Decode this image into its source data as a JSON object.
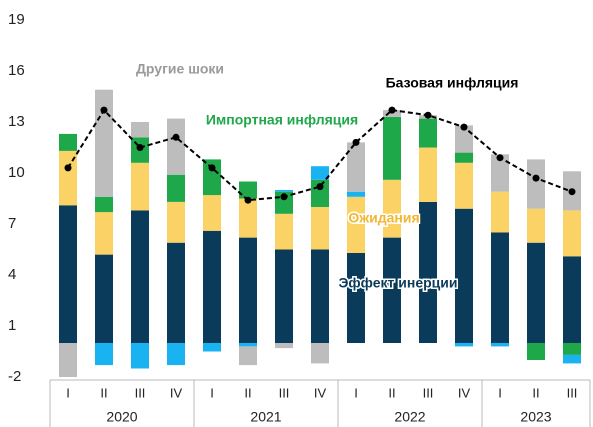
{
  "chart_data": {
    "type": "bar",
    "stacked": true,
    "categories": [
      "I",
      "II",
      "III",
      "IV",
      "I",
      "II",
      "III",
      "IV",
      "I",
      "II",
      "III",
      "IV",
      "I",
      "II",
      "III"
    ],
    "groups": [
      {
        "label": "2020",
        "span": 4
      },
      {
        "label": "2021",
        "span": 4
      },
      {
        "label": "2022",
        "span": 4
      },
      {
        "label": "2023",
        "span": 3
      }
    ],
    "ylim": [
      -2,
      19
    ],
    "yticks": [
      -2,
      1,
      4,
      7,
      10,
      13,
      16,
      19
    ],
    "grid": false,
    "series": [
      {
        "name": "Эффект инерции",
        "color": "#0b3b5a",
        "values": [
          8.1,
          5.2,
          7.8,
          5.9,
          6.6,
          6.2,
          5.5,
          5.5,
          5.3,
          6.2,
          8.3,
          7.9,
          6.5,
          5.9,
          5.1
        ]
      },
      {
        "name": "Ожидания",
        "color": "#fbd265",
        "values": [
          3.2,
          2.5,
          2.8,
          2.4,
          2.1,
          2.3,
          2.1,
          2.5,
          3.3,
          3.4,
          3.2,
          2.7,
          2.4,
          2.0,
          2.7
        ]
      },
      {
        "name": "Импортная инфляция",
        "color": "#1ea84a",
        "values": [
          1.0,
          0.9,
          1.5,
          1.6,
          2.1,
          1.0,
          1.3,
          1.6,
          0,
          3.7,
          1.7,
          0.6,
          0,
          -1.0,
          -0.7
        ]
      },
      {
        "color": "#19b3f2",
        "values": [
          0,
          -1.3,
          -1.5,
          -1.3,
          -0.5,
          -0.2,
          0.1,
          0.8,
          0.3,
          0,
          0,
          -0.2,
          -0.2,
          0,
          -0.5
        ]
      },
      {
        "name": "Другие шоки",
        "color": "#bdbdbd",
        "values": [
          -2.0,
          6.3,
          0.9,
          3.3,
          0,
          -1.1,
          -0.3,
          -1.2,
          2.9,
          0.4,
          0.2,
          1.6,
          2.2,
          2.9,
          2.3
        ]
      },
      {
        "name": "Базовая инфляция",
        "type": "line",
        "color": "#000000",
        "values": [
          10.3,
          13.7,
          11.5,
          12.1,
          10.3,
          8.4,
          8.6,
          9.2,
          11.8,
          13.7,
          13.4,
          12.7,
          10.9,
          9.7,
          8.9
        ]
      }
    ]
  }
}
